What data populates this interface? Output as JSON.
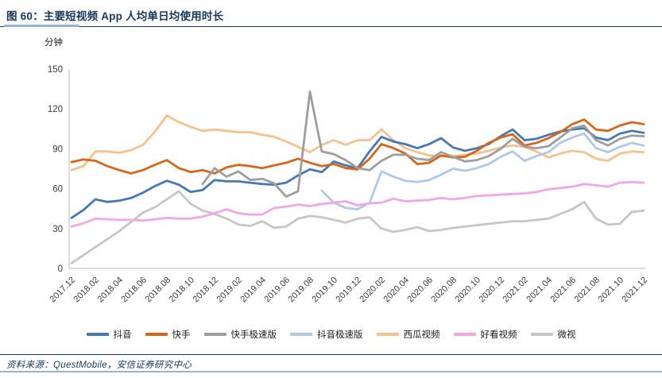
{
  "header": {
    "title": "图 60：主要短视频 App 人均单日均使用时长"
  },
  "footer": {
    "source": "资料来源：QuestMobile，安信证券研究中心"
  },
  "colors": {
    "accent_navy": "#17375D",
    "rule_light_blue": "#95B3D7",
    "axis_line": "#C8C8C8",
    "tick_text": "#3a3a3a"
  },
  "chart_data": {
    "type": "line",
    "figure_label": "图 60",
    "title": "主要短视频 App 人均单日均使用时长",
    "ylabel": "分钟",
    "ylim": [
      0,
      150
    ],
    "y_ticks": [
      0,
      30,
      60,
      90,
      120,
      150
    ],
    "grid": false,
    "legend_position": "bottom",
    "x_start": "2017.12",
    "x_end": "2021.12",
    "x_interval_months": 1,
    "x_tick_labels": [
      "2017.12",
      "2018.02",
      "2018.04",
      "2018.06",
      "2018.08",
      "2018.10",
      "2018.12",
      "2019.02",
      "2019.04",
      "2019.06",
      "2019.08",
      "2019.10",
      "2019.12",
      "2020.02",
      "2020.04",
      "2020.06",
      "2020.08",
      "2020.10",
      "2020.12",
      "2021.02",
      "2021.04",
      "2021.06",
      "2021.08",
      "2021.10",
      "2021.12"
    ],
    "series": [
      {
        "name": "抖音",
        "slug": "douyin",
        "color": "#4678B2",
        "values": [
          38,
          44,
          52,
          50,
          51,
          53,
          57,
          62,
          66,
          63,
          57.5,
          59,
          66.5,
          65.5,
          65.5,
          64.5,
          63.5,
          63,
          64.5,
          70,
          74.5,
          72.5,
          80.5,
          77.5,
          75.5,
          88,
          99,
          95.5,
          93.5,
          90.5,
          93.5,
          98,
          91,
          88.5,
          90.5,
          93.5,
          99.5,
          104.5,
          96.5,
          97.5,
          100.5,
          103,
          104.5,
          105.5,
          98.5,
          96.5,
          101.5,
          103.5,
          102
        ]
      },
      {
        "name": "快手",
        "slug": "kuaishou",
        "color": "#D5661A",
        "values": [
          80,
          82,
          81,
          77,
          74,
          71.5,
          74,
          78,
          81.5,
          75.5,
          72.5,
          74,
          71.5,
          76,
          78,
          77,
          75.5,
          77.5,
          79.5,
          82.5,
          79.5,
          77,
          78.5,
          75.5,
          74.5,
          82.5,
          93.5,
          90.5,
          86.5,
          78.5,
          79.5,
          85,
          83.5,
          84,
          88.5,
          94.5,
          98.5,
          101,
          92.5,
          94.5,
          98,
          102.5,
          108.5,
          112,
          104.5,
          103.5,
          107.5,
          110,
          108.5
        ]
      },
      {
        "name": "快手极速版",
        "slug": "kuaishou-express",
        "color": "#9E9E9E",
        "values": [
          null,
          null,
          null,
          null,
          null,
          null,
          null,
          null,
          null,
          null,
          null,
          63.5,
          75.5,
          69,
          73,
          66.5,
          67.5,
          64,
          54,
          58,
          133,
          88,
          86,
          81.5,
          75.5,
          74,
          81,
          85.5,
          85.5,
          82.5,
          81.5,
          87.5,
          84,
          80.5,
          81.5,
          84.5,
          90,
          97.5,
          91.5,
          90.5,
          92,
          98.5,
          105.5,
          107.5,
          96.5,
          92.5,
          97.5,
          100,
          99.5
        ]
      },
      {
        "name": "抖音极速版",
        "slug": "douyin-express",
        "color": "#AFC8E8",
        "values": [
          null,
          null,
          null,
          null,
          null,
          null,
          null,
          null,
          null,
          null,
          null,
          null,
          null,
          null,
          null,
          null,
          null,
          null,
          null,
          null,
          null,
          58.5,
          49.5,
          45.5,
          44.5,
          49.5,
          73,
          69,
          66,
          65,
          66.5,
          70.5,
          75,
          73.5,
          75.5,
          78.5,
          84,
          88,
          81,
          84.5,
          87.5,
          94.5,
          98.5,
          101.5,
          90.5,
          87.5,
          91.5,
          94.5,
          92.5
        ]
      },
      {
        "name": "西瓜视频",
        "slug": "xigua-video",
        "color": "#F5C18E",
        "values": [
          74,
          77,
          88,
          88,
          87,
          89,
          93,
          103,
          115,
          110,
          106.5,
          103.5,
          104.5,
          103.5,
          102.5,
          102.5,
          100.5,
          99,
          95.5,
          91.5,
          87.5,
          93,
          96.5,
          93,
          96.5,
          96.5,
          104.5,
          96.5,
          90.5,
          87.5,
          85,
          84.5,
          84.5,
          85.5,
          86.5,
          88.5,
          91,
          92.5,
          91.5,
          88,
          83.5,
          86.5,
          88.5,
          87.5,
          82.5,
          81,
          86.5,
          88,
          87.5
        ]
      },
      {
        "name": "好看视频",
        "slug": "haokan-video",
        "color": "#F2A6E6",
        "values": [
          31.5,
          34,
          37.5,
          37,
          36.5,
          36.5,
          36,
          37,
          38,
          37.5,
          37.5,
          39,
          41.5,
          44.5,
          41.5,
          40.5,
          40.5,
          45.5,
          46.5,
          48,
          47,
          48.5,
          49.5,
          50.5,
          47.5,
          49,
          49.5,
          52.5,
          50.5,
          51,
          51.5,
          53,
          52,
          53,
          54.5,
          55,
          55.5,
          56,
          56.5,
          57.5,
          59.5,
          60.5,
          61.5,
          63.5,
          62.5,
          61.5,
          64.5,
          65,
          64.5
        ]
      },
      {
        "name": "微视",
        "slug": "weishi",
        "color": "#C6C6C6",
        "values": [
          4,
          10,
          16,
          22,
          28,
          35,
          42,
          46,
          52,
          58,
          48.5,
          43.5,
          41,
          37.5,
          33,
          32,
          35.5,
          30.5,
          31.5,
          37.5,
          39.5,
          38.5,
          36.5,
          34.5,
          37.5,
          38.5,
          30,
          27.5,
          29,
          31,
          28,
          29,
          30.5,
          31.5,
          32.5,
          33.5,
          34.5,
          35.5,
          35.5,
          36.5,
          37.5,
          41,
          44.5,
          50,
          37.5,
          33,
          33.5,
          42.5,
          43.5
        ]
      }
    ]
  }
}
